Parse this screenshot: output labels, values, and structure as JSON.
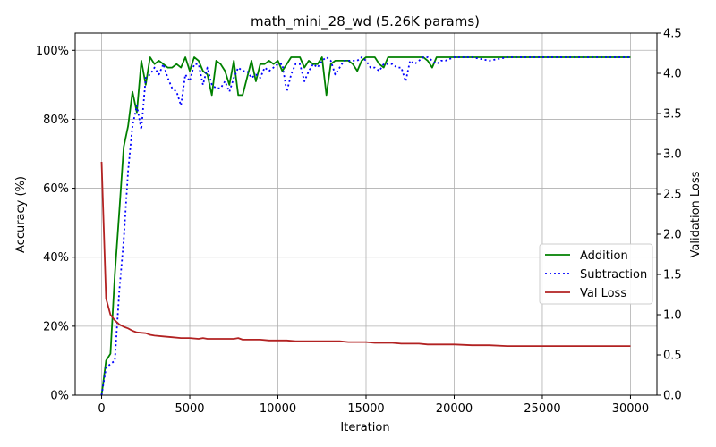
{
  "chart_data": {
    "type": "line",
    "title": "math_mini_28_wd (5.26K params)",
    "xlabel": "Iteration",
    "ylabel": "Accuracy (%)",
    "y2label": "Validation Loss",
    "xlim": [
      -1500,
      31500
    ],
    "ylim": [
      0,
      105
    ],
    "y2lim": [
      0,
      4.5
    ],
    "xticks": [
      0,
      5000,
      10000,
      15000,
      20000,
      25000,
      30000
    ],
    "xtick_labels": [
      "0",
      "5000",
      "10000",
      "15000",
      "20000",
      "25000",
      "30000"
    ],
    "yticks": [
      0,
      20,
      40,
      60,
      80,
      100
    ],
    "ytick_labels": [
      "0%",
      "20%",
      "40%",
      "60%",
      "80%",
      "100%"
    ],
    "y2ticks": [
      0,
      0.5,
      1,
      1.5,
      2,
      2.5,
      3,
      3.5,
      4,
      4.5
    ],
    "y2tick_labels": [
      "0.0",
      "0.5",
      "1.0",
      "1.5",
      "2.0",
      "2.5",
      "3.0",
      "3.5",
      "4.0",
      "4.5"
    ],
    "grid": true,
    "legend_position": "center-right",
    "series": [
      {
        "name": "Addition",
        "axis": "left",
        "color": "#008000",
        "style": "solid",
        "x": [
          0,
          250,
          500,
          750,
          1000,
          1250,
          1500,
          1750,
          2000,
          2250,
          2500,
          2750,
          3000,
          3250,
          3500,
          3750,
          4000,
          4250,
          4500,
          4750,
          5000,
          5250,
          5500,
          5750,
          6000,
          6250,
          6500,
          6750,
          7000,
          7250,
          7500,
          7750,
          8000,
          8250,
          8500,
          8750,
          9000,
          9250,
          9500,
          9750,
          10000,
          10250,
          10500,
          10750,
          11000,
          11250,
          11500,
          11750,
          12000,
          12250,
          12500,
          12750,
          13000,
          13250,
          13500,
          13750,
          14000,
          14250,
          14500,
          14750,
          15000,
          15250,
          15500,
          15750,
          16000,
          16250,
          16500,
          16750,
          17000,
          17250,
          17500,
          17750,
          18000,
          18250,
          18500,
          18750,
          19000,
          19250,
          19500,
          20000,
          21000,
          22000,
          23000,
          24000,
          25000,
          26000,
          27000,
          28000,
          29000,
          30000
        ],
        "y": [
          0,
          10,
          12,
          35,
          53,
          72,
          78,
          88,
          82,
          97,
          90,
          98,
          96,
          97,
          96,
          95,
          95,
          96,
          95,
          98,
          94,
          98,
          97,
          94,
          93,
          87,
          97,
          96,
          94,
          90,
          97,
          87,
          87,
          92,
          97,
          91,
          96,
          96,
          97,
          96,
          97,
          94,
          96,
          98,
          98,
          98,
          95,
          97,
          96,
          96,
          98,
          87,
          96,
          97,
          97,
          97,
          97,
          96,
          94,
          97,
          98,
          98,
          98,
          96,
          95,
          98,
          98,
          98,
          98,
          98,
          98,
          98,
          98,
          98,
          97,
          95,
          98,
          98,
          98,
          98,
          98,
          98,
          98,
          98,
          98,
          98,
          98,
          98,
          98,
          98
        ]
      },
      {
        "name": "Subtraction",
        "axis": "left",
        "color": "#0000ff",
        "style": "dotted",
        "x": [
          0,
          250,
          500,
          750,
          1000,
          1250,
          1500,
          1750,
          2000,
          2250,
          2500,
          2750,
          3000,
          3250,
          3500,
          3750,
          4000,
          4250,
          4500,
          4750,
          5000,
          5250,
          5500,
          5750,
          6000,
          6250,
          6500,
          6750,
          7000,
          7250,
          7500,
          7750,
          8000,
          8250,
          8500,
          8750,
          9000,
          9250,
          9500,
          9750,
          10000,
          10250,
          10500,
          10750,
          11000,
          11250,
          11500,
          11750,
          12000,
          12250,
          12500,
          12750,
          13000,
          13250,
          13500,
          13750,
          14000,
          14250,
          14500,
          14750,
          15000,
          15250,
          15500,
          15750,
          16000,
          16250,
          16500,
          16750,
          17000,
          17250,
          17500,
          17750,
          18000,
          18250,
          18500,
          18750,
          19000,
          19250,
          19500,
          20000,
          21000,
          22000,
          23000,
          24000,
          25000,
          26000,
          27000,
          28000,
          29000,
          30000
        ],
        "y": [
          0,
          8,
          9,
          10,
          30,
          45,
          65,
          78,
          84,
          77,
          92,
          93,
          95,
          93,
          96,
          92,
          89,
          88,
          84,
          93,
          91,
          96,
          96,
          90,
          95,
          90,
          89,
          89,
          91,
          88,
          92,
          95,
          94,
          94,
          92,
          93,
          92,
          95,
          94,
          95,
          96,
          96,
          88,
          93,
          96,
          96,
          91,
          94,
          96,
          95,
          97,
          98,
          97,
          93,
          95,
          97,
          97,
          97,
          97,
          98,
          97,
          95,
          95,
          94,
          96,
          96,
          96,
          95,
          95,
          91,
          97,
          96,
          97,
          98,
          98,
          97,
          96,
          97,
          97,
          98,
          98,
          97,
          98,
          98,
          98,
          98,
          98,
          98,
          98,
          98
        ]
      },
      {
        "name": "Val Loss",
        "axis": "right",
        "color": "#b22222",
        "style": "solid",
        "x": [
          0,
          250,
          500,
          750,
          1000,
          1250,
          1500,
          1750,
          2000,
          2500,
          2750,
          3000,
          3500,
          4000,
          4500,
          5000,
          5500,
          5750,
          6000,
          6500,
          7000,
          7500,
          7750,
          8000,
          8500,
          9000,
          9500,
          10000,
          10500,
          11000,
          11500,
          12000,
          12500,
          13000,
          13500,
          14000,
          14500,
          15000,
          15500,
          16000,
          16500,
          17000,
          17500,
          18000,
          18500,
          19000,
          19500,
          20000,
          21000,
          22000,
          23000,
          24000,
          25000,
          26000,
          27000,
          28000,
          29000,
          30000
        ],
        "y": [
          2.9,
          1.2,
          1.0,
          0.93,
          0.88,
          0.85,
          0.83,
          0.8,
          0.78,
          0.77,
          0.75,
          0.74,
          0.73,
          0.72,
          0.71,
          0.71,
          0.7,
          0.71,
          0.7,
          0.7,
          0.7,
          0.7,
          0.71,
          0.69,
          0.69,
          0.69,
          0.68,
          0.68,
          0.68,
          0.67,
          0.67,
          0.67,
          0.67,
          0.67,
          0.67,
          0.66,
          0.66,
          0.66,
          0.65,
          0.65,
          0.65,
          0.64,
          0.64,
          0.64,
          0.63,
          0.63,
          0.63,
          0.63,
          0.62,
          0.62,
          0.61,
          0.61,
          0.61,
          0.61,
          0.61,
          0.61,
          0.61,
          0.61
        ]
      }
    ]
  }
}
